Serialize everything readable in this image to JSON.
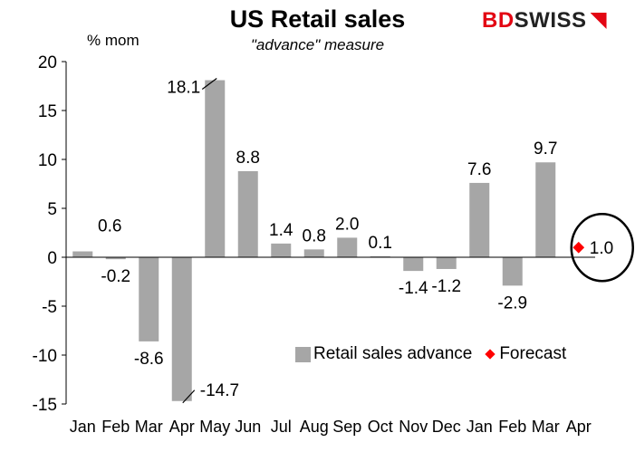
{
  "title": "US Retail sales",
  "subtitle": "\"advance\" measure",
  "logo": {
    "text_red": "BD",
    "text_dark": "SWISS",
    "mark": "flag-icon"
  },
  "colors": {
    "bar": "#a6a6a6",
    "forecast": "#ff0000",
    "brand": "#e30613"
  },
  "chart_data": {
    "type": "bar",
    "title": "US Retail sales",
    "subtitle": "\"advance\" measure",
    "ylabel": "% mom",
    "xlabel": "",
    "ylim": [
      -15,
      20
    ],
    "yticks": [
      20,
      15,
      10,
      5,
      0,
      -5,
      -10,
      -15
    ],
    "categories": [
      "Jan",
      "Feb",
      "Mar",
      "Apr",
      "May",
      "Jun",
      "Jul",
      "Aug",
      "Sep",
      "Oct",
      "Nov",
      "Dec",
      "Jan",
      "Feb",
      "Mar",
      "Apr"
    ],
    "series": [
      {
        "name": "Retail sales advance",
        "values": [
          0.6,
          -0.2,
          -8.6,
          -14.7,
          18.1,
          8.8,
          1.4,
          0.8,
          2.0,
          0.1,
          -1.4,
          -1.2,
          7.6,
          -2.9,
          9.7,
          null
        ]
      },
      {
        "name": "Forecast",
        "values": [
          null,
          null,
          null,
          null,
          null,
          null,
          null,
          null,
          null,
          null,
          null,
          null,
          null,
          null,
          null,
          1.0
        ]
      }
    ],
    "data_labels": [
      "0.6",
      "-0.2",
      "-8.6",
      "-14.7",
      "18.1",
      "8.8",
      "1.4",
      "0.8",
      "2.0",
      "0.1",
      "-1.4",
      "-1.2",
      "7.6",
      "-2.9",
      "9.7",
      "1.0"
    ],
    "legend": [
      "Retail sales advance",
      "Forecast"
    ],
    "legend_position": "bottom-right",
    "grid": false,
    "annotations": [
      "forecast circled"
    ]
  }
}
